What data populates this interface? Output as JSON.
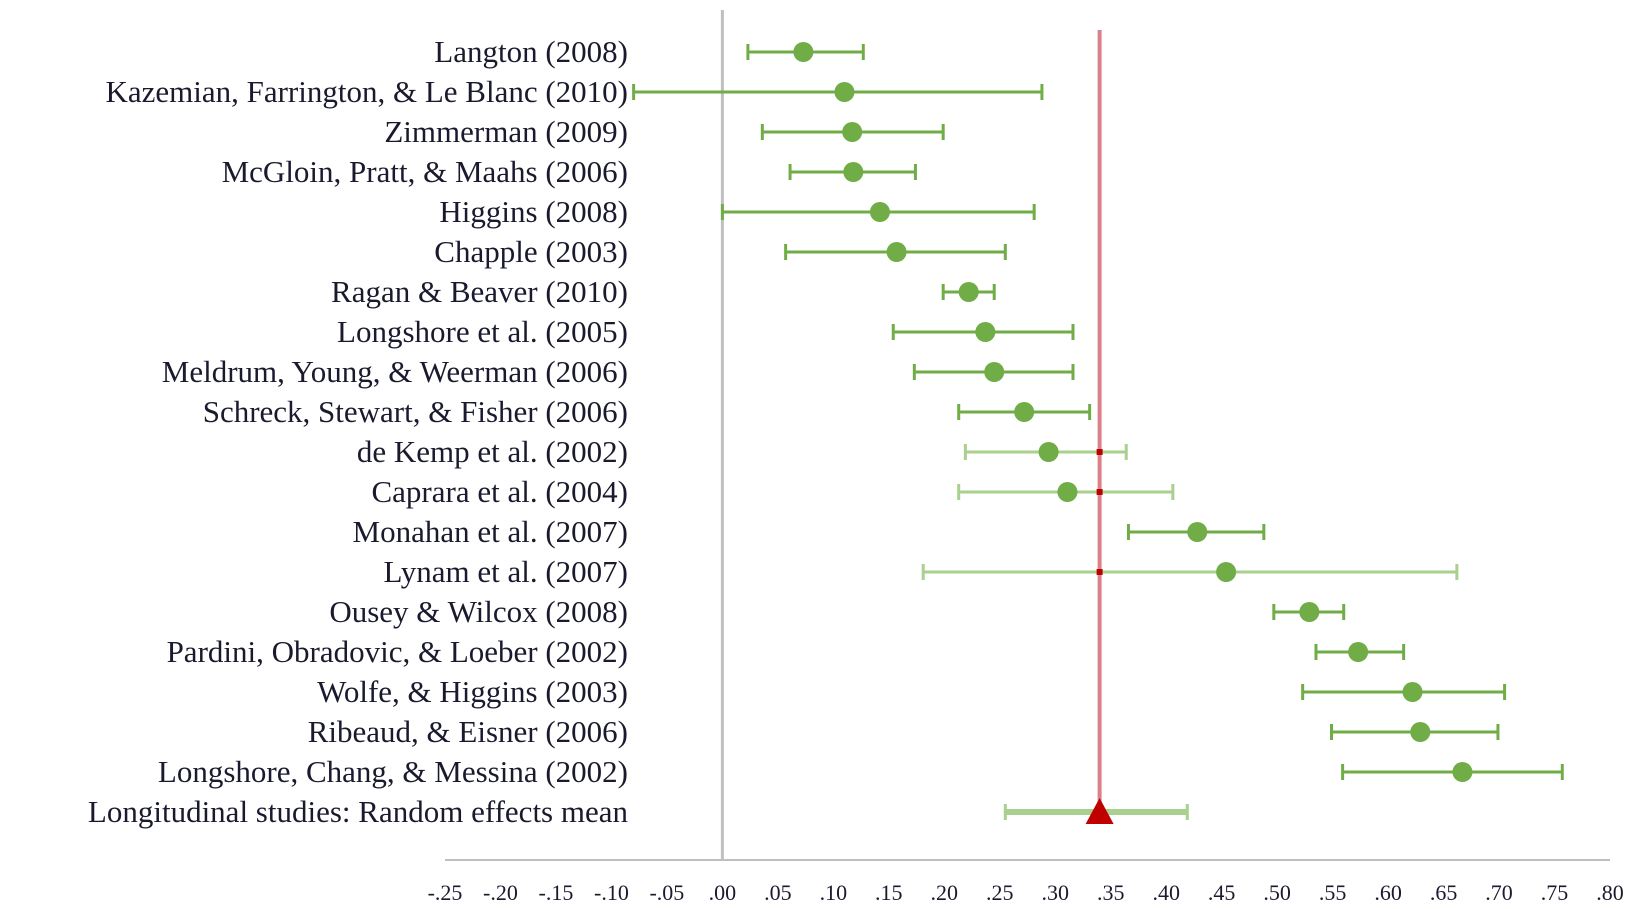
{
  "chart_data": {
    "type": "forest",
    "title": "",
    "xlabel": "",
    "ylabel": "",
    "xlim": [
      -0.25,
      0.8
    ],
    "x_ticks": [
      -0.25,
      -0.2,
      -0.15,
      -0.1,
      -0.05,
      0.0,
      0.05,
      0.1,
      0.15,
      0.2,
      0.25,
      0.3,
      0.35,
      0.4,
      0.45,
      0.5,
      0.55,
      0.6,
      0.65,
      0.7,
      0.75,
      0.8
    ],
    "x_tick_labels": [
      "-.25",
      "-.20",
      "-.15",
      "-.10",
      "-.05",
      ".00",
      ".05",
      ".10",
      ".15",
      ".20",
      ".25",
      ".30",
      ".35",
      ".40",
      ".45",
      ".50",
      ".55",
      ".60",
      ".65",
      ".70",
      ".75",
      ".80"
    ],
    "reference_line": 0.0,
    "mean_line": 0.34,
    "grid": false,
    "colors": {
      "study": "#70ad47",
      "study_faded": "#a9d08e",
      "mean_marker": "#c00000",
      "mean_line": "#d9828a",
      "reference_line": "#bfbfbf",
      "axis": "#bfbfbf",
      "text": "#1a1a2e"
    },
    "studies": [
      {
        "label": "Langton (2008)",
        "estimate": 0.073,
        "lower": 0.023,
        "upper": 0.127
      },
      {
        "label": "Kazemian, Farrington, & Le Blanc (2010)",
        "estimate": 0.11,
        "lower": -0.08,
        "upper": 0.288
      },
      {
        "label": "Zimmerman (2009)",
        "estimate": 0.117,
        "lower": 0.036,
        "upper": 0.199
      },
      {
        "label": "McGloin, Pratt, & Maahs (2006)",
        "estimate": 0.118,
        "lower": 0.061,
        "upper": 0.174
      },
      {
        "label": "Higgins (2008)",
        "estimate": 0.142,
        "lower": 0.0,
        "upper": 0.281
      },
      {
        "label": "Chapple (2003)",
        "estimate": 0.157,
        "lower": 0.057,
        "upper": 0.255
      },
      {
        "label": "Ragan & Beaver (2010)",
        "estimate": 0.222,
        "lower": 0.199,
        "upper": 0.245
      },
      {
        "label": "Longshore et al. (2005)",
        "estimate": 0.237,
        "lower": 0.154,
        "upper": 0.316
      },
      {
        "label": "Meldrum, Young, & Weerman (2006)",
        "estimate": 0.245,
        "lower": 0.173,
        "upper": 0.316
      },
      {
        "label": "Schreck, Stewart, & Fisher (2006)",
        "estimate": 0.272,
        "lower": 0.213,
        "upper": 0.331
      },
      {
        "label": "de Kemp et al. (2002)",
        "estimate": 0.294,
        "lower": 0.219,
        "upper": 0.364,
        "faded": true
      },
      {
        "label": "Caprara et al. (2004)",
        "estimate": 0.311,
        "lower": 0.213,
        "upper": 0.406,
        "faded": true
      },
      {
        "label": "Monahan et al. (2007)",
        "estimate": 0.428,
        "lower": 0.366,
        "upper": 0.488
      },
      {
        "label": "Lynam et al. (2007)",
        "estimate": 0.454,
        "lower": 0.181,
        "upper": 0.662,
        "faded": true
      },
      {
        "label": "Ousey & Wilcox (2008)",
        "estimate": 0.529,
        "lower": 0.497,
        "upper": 0.56
      },
      {
        "label": "Pardini, Obradovic, & Loeber (2002)",
        "estimate": 0.573,
        "lower": 0.535,
        "upper": 0.614
      },
      {
        "label": "Wolfe, & Higgins (2003)",
        "estimate": 0.622,
        "lower": 0.523,
        "upper": 0.705
      },
      {
        "label": "Ribeaud, & Eisner (2006)",
        "estimate": 0.629,
        "lower": 0.549,
        "upper": 0.699
      },
      {
        "label": "Longshore, Chang, & Messina (2002)",
        "estimate": 0.667,
        "lower": 0.559,
        "upper": 0.757
      }
    ],
    "mean": {
      "label": "Longitudinal studies: Random effects mean",
      "estimate": 0.34,
      "lower": 0.255,
      "upper": 0.419
    }
  }
}
